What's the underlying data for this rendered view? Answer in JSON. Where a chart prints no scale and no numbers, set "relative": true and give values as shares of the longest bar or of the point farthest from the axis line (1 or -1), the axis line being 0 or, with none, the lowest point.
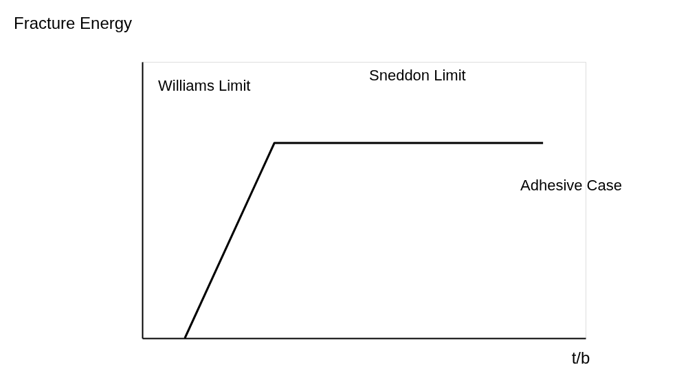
{
  "chart_data": {
    "type": "line",
    "title": "Fracture Energy",
    "xlabel": "t/b",
    "annotations": [
      "Williams Limit",
      "Sneddon Limit",
      "Adhesive Case"
    ],
    "relative": true,
    "categories": [
      null,
      null,
      null,
      null,
      null
    ],
    "series": [
      {
        "color": "#000000",
        "values": [
          0,
          1,
          1,
          1,
          1
        ]
      }
    ]
  }
}
